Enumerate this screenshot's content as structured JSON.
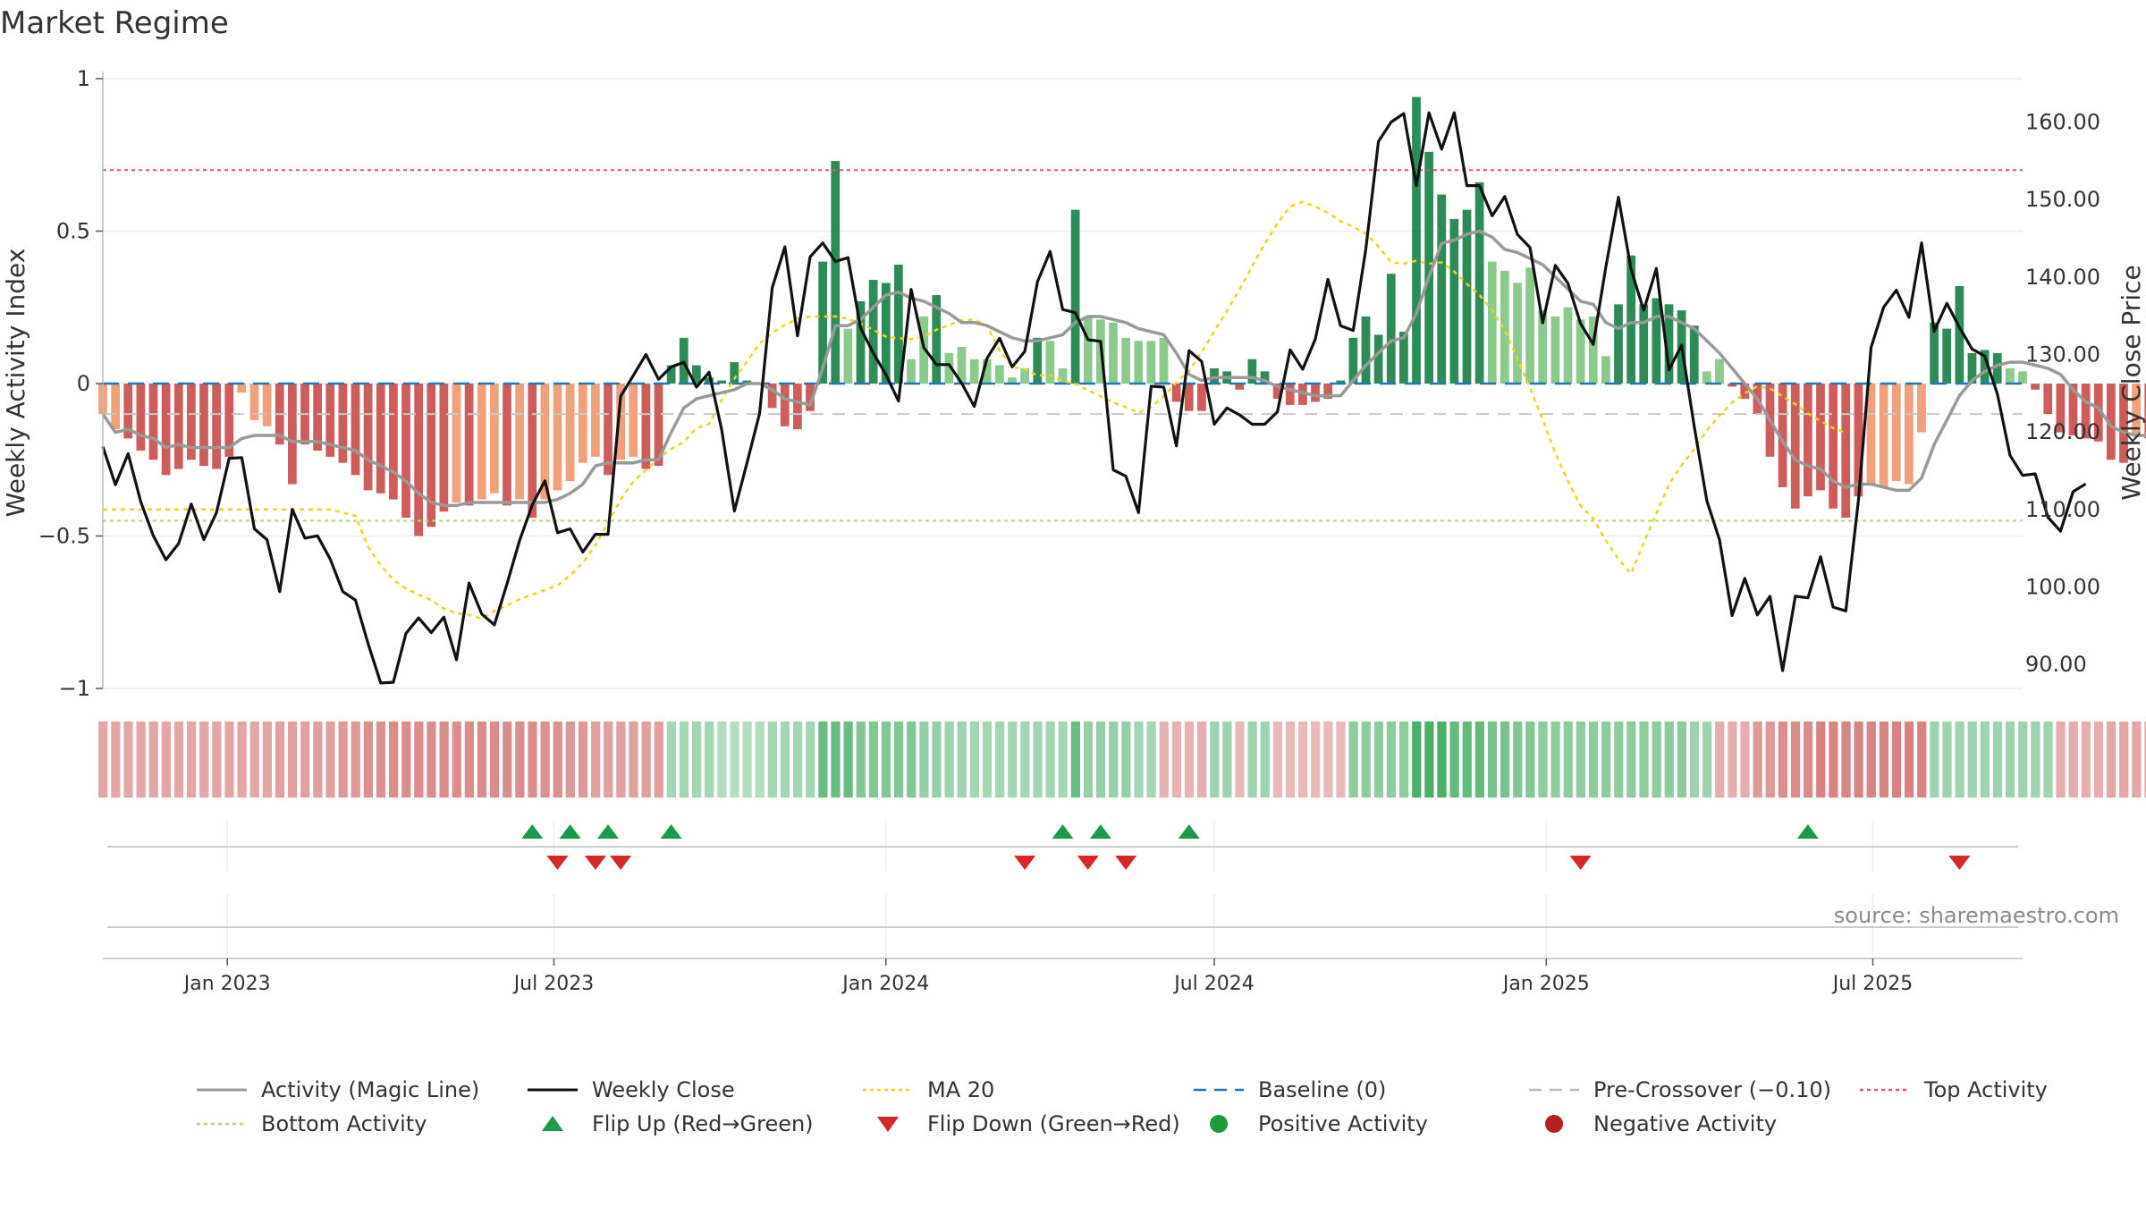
{
  "chart_data": {
    "title": "Market Regime",
    "source": "source: sharemaestro.com",
    "type": "bar",
    "axes": {
      "y_left": {
        "label": "Weekly Activity Index",
        "ticks": [
          1,
          0.5,
          0,
          -0.5,
          -1
        ],
        "tick_labels": [
          "1",
          "0.5",
          "0",
          "−0.5",
          "−1"
        ],
        "range": [
          -1,
          1
        ]
      },
      "y_right": {
        "label": "Weekly Close Price",
        "ticks": [
          160,
          150,
          140,
          130,
          120,
          110,
          100,
          90
        ],
        "tick_labels": [
          "160.00",
          "150.00",
          "140.00",
          "130.00",
          "120.00",
          "110.00",
          "100.00",
          "90.00"
        ],
        "range": [
          86.9,
          165.6
        ]
      },
      "x": {
        "range": [
          "2022-10-24",
          "2025-09-22"
        ],
        "ticks": [
          "2023-01-01",
          "2023-07-01",
          "2024-01-01",
          "2024-07-01",
          "2025-01-01",
          "2025-07-01"
        ],
        "tick_labels": [
          "Jan 2023",
          "Jul 2023",
          "Jan 2024",
          "Jul 2024",
          "Jan 2025",
          "Jul 2025"
        ]
      }
    },
    "reference_lines": {
      "baseline": 0,
      "pre_crossover": -0.1,
      "top_activity": 0.7,
      "bottom_activity": -0.45
    },
    "start_date": "2022-10-24",
    "activity": [
      -0.1,
      -0.15,
      -0.18,
      -0.22,
      -0.25,
      -0.3,
      -0.28,
      -0.25,
      -0.27,
      -0.28,
      -0.24,
      -0.03,
      -0.12,
      -0.14,
      -0.2,
      -0.33,
      -0.2,
      -0.22,
      -0.24,
      -0.26,
      -0.3,
      -0.35,
      -0.36,
      -0.38,
      -0.44,
      -0.5,
      -0.47,
      -0.42,
      -0.39,
      -0.4,
      -0.38,
      -0.36,
      -0.4,
      -0.38,
      -0.44,
      -0.38,
      -0.35,
      -0.32,
      -0.26,
      -0.24,
      -0.3,
      -0.25,
      -0.24,
      -0.28,
      -0.27,
      0.06,
      0.15,
      0.06,
      0.02,
      0.01,
      0.07,
      0.01,
      0.0,
      -0.08,
      -0.14,
      -0.15,
      -0.09,
      0.4,
      0.73,
      0.18,
      0.27,
      0.34,
      0.33,
      0.39,
      0.08,
      0.22,
      0.29,
      0.1,
      0.12,
      0.08,
      0.08,
      0.06,
      0.02,
      0.05,
      0.15,
      0.14,
      0.05,
      0.57,
      0.22,
      0.21,
      0.2,
      0.15,
      0.14,
      0.14,
      0.15,
      -0.06,
      -0.09,
      -0.09,
      0.05,
      0.04,
      -0.02,
      0.08,
      0.04,
      -0.05,
      -0.07,
      -0.07,
      -0.06,
      -0.05,
      0.01,
      0.15,
      0.22,
      0.16,
      0.36,
      0.17,
      0.94,
      0.76,
      0.62,
      0.54,
      0.57,
      0.66,
      0.4,
      0.37,
      0.33,
      0.38,
      0.24,
      0.22,
      0.25,
      0.21,
      0.22,
      0.09,
      0.26,
      0.42,
      0.26,
      0.28,
      0.26,
      0.24,
      0.19,
      0.04,
      0.08,
      -0.01,
      -0.05,
      -0.1,
      -0.24,
      -0.34,
      -0.41,
      -0.37,
      -0.35,
      -0.41,
      -0.44,
      -0.37,
      -0.33,
      -0.34,
      -0.32,
      -0.33,
      -0.16,
      0.2,
      0.18,
      0.32,
      0.1,
      0.11,
      0.1,
      0.05,
      0.04,
      -0.02,
      -0.1,
      -0.16,
      -0.17,
      -0.18,
      -0.19,
      -0.25,
      -0.26,
      -0.17,
      -0.18
    ],
    "magic_line": [
      -0.1,
      -0.16,
      -0.15,
      -0.17,
      -0.18,
      -0.21,
      -0.2,
      -0.21,
      -0.21,
      -0.21,
      -0.21,
      -0.18,
      -0.17,
      -0.17,
      -0.17,
      -0.19,
      -0.19,
      -0.19,
      -0.2,
      -0.21,
      -0.22,
      -0.25,
      -0.27,
      -0.29,
      -0.32,
      -0.36,
      -0.39,
      -0.4,
      -0.4,
      -0.39,
      -0.39,
      -0.39,
      -0.39,
      -0.39,
      -0.39,
      -0.39,
      -0.38,
      -0.36,
      -0.33,
      -0.27,
      -0.26,
      -0.26,
      -0.26,
      -0.25,
      -0.25,
      -0.16,
      -0.08,
      -0.05,
      -0.04,
      -0.03,
      -0.02,
      0.0,
      0.0,
      -0.02,
      -0.05,
      -0.06,
      -0.07,
      0.05,
      0.19,
      0.19,
      0.21,
      0.25,
      0.29,
      0.3,
      0.28,
      0.27,
      0.25,
      0.23,
      0.2,
      0.2,
      0.19,
      0.17,
      0.15,
      0.14,
      0.14,
      0.15,
      0.16,
      0.2,
      0.22,
      0.22,
      0.21,
      0.2,
      0.18,
      0.17,
      0.16,
      0.1,
      0.03,
      0.01,
      0.02,
      0.02,
      0.02,
      0.02,
      0.01,
      -0.01,
      -0.02,
      -0.03,
      -0.04,
      -0.04,
      -0.04,
      0.01,
      0.06,
      0.1,
      0.14,
      0.15,
      0.23,
      0.35,
      0.46,
      0.47,
      0.49,
      0.5,
      0.48,
      0.44,
      0.43,
      0.41,
      0.39,
      0.35,
      0.31,
      0.27,
      0.26,
      0.2,
      0.18,
      0.2,
      0.2,
      0.22,
      0.22,
      0.2,
      0.18,
      0.14,
      0.1,
      0.05,
      0.0,
      -0.05,
      -0.12,
      -0.19,
      -0.25,
      -0.27,
      -0.28,
      -0.32,
      -0.34,
      -0.33,
      -0.33,
      -0.34,
      -0.35,
      -0.35,
      -0.31,
      -0.2,
      -0.12,
      -0.04,
      0.01,
      0.04,
      0.06,
      0.07,
      0.07,
      0.06,
      0.05,
      0.03,
      -0.02,
      -0.06,
      -0.08,
      -0.14,
      -0.16,
      -0.17,
      -0.17
    ],
    "weekly_close": [
      118.1,
      113.2,
      117.2,
      111.0,
      106.6,
      103.5,
      105.6,
      110.7,
      106.1,
      109.6,
      116.6,
      116.7,
      107.5,
      106.1,
      99.4,
      110.0,
      106.3,
      106.6,
      103.6,
      99.4,
      98.3,
      92.7,
      87.6,
      87.7,
      94.0,
      96.0,
      94.1,
      96.1,
      90.6,
      100.5,
      96.5,
      95.1,
      100.4,
      106.0,
      110.6,
      113.7,
      107.0,
      107.5,
      104.5,
      106.8,
      106.8,
      124.6,
      127.3,
      130.0,
      126.8,
      128.4,
      129.0,
      125.8,
      127.7,
      120.3,
      109.8,
      116.0,
      122.4,
      138.6,
      143.9,
      132.4,
      142.6,
      144.4,
      142.0,
      142.5,
      133.4,
      130.2,
      127.4,
      124.0,
      138.4,
      130.9,
      128.7,
      128.7,
      126.3,
      123.3,
      129.5,
      132.1,
      128.4,
      130.4,
      139.4,
      143.3,
      135.8,
      135.4,
      131.9,
      131.7,
      115.1,
      114.3,
      109.6,
      125.9,
      125.8,
      118.2,
      130.5,
      129.1,
      121.0,
      123.1,
      122.2,
      121.0,
      121.0,
      122.6,
      130.6,
      128.1,
      132.0,
      139.7,
      133.7,
      133.1,
      143.6,
      157.5,
      160.0,
      161.1,
      151.8,
      161.2,
      156.5,
      161.2,
      151.8,
      151.8,
      147.9,
      150.4,
      145.5,
      143.8,
      134.1,
      141.5,
      139.2,
      134.0,
      131.3,
      141.3,
      150.3,
      141.0,
      135.7,
      141.1,
      128.0,
      131.2,
      120.7,
      111.1,
      106.1,
      96.3,
      101.1,
      96.4,
      98.8,
      89.2,
      98.8,
      98.6,
      103.9,
      97.4,
      96.9,
      111.2,
      130.9,
      136.1,
      138.3,
      134.8,
      144.4,
      133.0,
      136.6,
      133.5,
      130.7,
      129.8,
      124.9,
      117.0,
      114.4,
      114.6,
      109.0,
      107.2,
      112.3,
      113.3
    ],
    "ma20": [
      110.0,
      110.0,
      110.0,
      110.0,
      110.0,
      110.0,
      110.0,
      110.0,
      110.0,
      110.0,
      110.0,
      110.0,
      110.0,
      110.0,
      110.0,
      110.0,
      110.0,
      110.0,
      110.0,
      109.6,
      109.2,
      105.2,
      102.8,
      100.9,
      99.8,
      99.0,
      98.3,
      97.2,
      96.6,
      96.4,
      95.9,
      96.9,
      97.6,
      98.4,
      99.0,
      99.6,
      100.2,
      101.5,
      103.1,
      105.4,
      108.3,
      111.3,
      113.6,
      115.1,
      116.6,
      117.8,
      118.7,
      120.5,
      121.0,
      124.1,
      126.9,
      129.1,
      131.4,
      132.8,
      133.8,
      134.6,
      134.9,
      134.9,
      134.9,
      134.6,
      134.0,
      133.2,
      132.3,
      132.1,
      132.0,
      132.3,
      133.2,
      133.8,
      134.4,
      134.5,
      133.7,
      130.5,
      128.4,
      128.1,
      127.3,
      127.3,
      126.6,
      126.2,
      125.4,
      124.6,
      123.8,
      123.2,
      122.5,
      123.2,
      124.6,
      126.4,
      127.9,
      130.3,
      133.0,
      135.6,
      138.4,
      141.4,
      144.3,
      146.9,
      149.1,
      149.7,
      149.1,
      148.3,
      147.2,
      146.5,
      145.6,
      144.0,
      141.9,
      141.7,
      142.1,
      141.7,
      141.9,
      140.7,
      139.1,
      137.7,
      135.7,
      133.1,
      129.5,
      125.7,
      121.6,
      117.3,
      113.7,
      110.5,
      108.8,
      106.0,
      103.6,
      101.7,
      105.7,
      109.5,
      113.2,
      115.7,
      117.8,
      120.2,
      122.1,
      123.8,
      125.0,
      125.9,
      125.6,
      124.6,
      123.6,
      122.4,
      121.4,
      120.5,
      119.9
    ],
    "close_marker_dates": [
      "2023-06-19",
      "2024-09-22"
    ],
    "bar_regime_note": "bars colored by regime; light shading for weaker values",
    "regime_strip": [
      -0.35,
      -0.35,
      -0.35,
      -0.35,
      -0.35,
      -0.35,
      -0.35,
      -0.35,
      -0.35,
      -0.35,
      -0.35,
      -0.35,
      -0.35,
      -0.35,
      -0.4,
      -0.4,
      -0.4,
      -0.4,
      -0.4,
      -0.45,
      -0.45,
      -0.5,
      -0.5,
      -0.55,
      -0.55,
      -0.55,
      -0.55,
      -0.55,
      -0.55,
      -0.55,
      -0.55,
      -0.55,
      -0.55,
      -0.55,
      -0.55,
      -0.5,
      -0.5,
      -0.45,
      -0.45,
      -0.4,
      -0.4,
      -0.4,
      -0.4,
      -0.4,
      -0.4,
      0.3,
      0.3,
      0.3,
      0.3,
      0.2,
      0.2,
      0.2,
      0.2,
      0.3,
      0.3,
      0.3,
      0.3,
      0.7,
      0.7,
      0.7,
      0.55,
      0.55,
      0.55,
      0.55,
      0.55,
      0.4,
      0.4,
      0.35,
      0.35,
      0.3,
      0.3,
      0.3,
      0.3,
      0.3,
      0.3,
      0.3,
      0.3,
      0.7,
      0.4,
      0.4,
      0.4,
      0.4,
      0.3,
      0.3,
      -0.25,
      -0.25,
      -0.25,
      -0.3,
      0.35,
      0.35,
      -0.2,
      0.35,
      0.35,
      -0.2,
      -0.2,
      -0.2,
      -0.2,
      -0.2,
      -0.2,
      0.45,
      0.45,
      0.45,
      0.45,
      0.45,
      0.9,
      0.9,
      0.9,
      0.75,
      0.75,
      0.75,
      0.6,
      0.6,
      0.55,
      0.55,
      0.45,
      0.45,
      0.45,
      0.45,
      0.45,
      0.45,
      0.45,
      0.45,
      0.45,
      0.45,
      0.45,
      0.45,
      0.35,
      0.35,
      -0.3,
      -0.3,
      -0.3,
      -0.45,
      -0.45,
      -0.55,
      -0.55,
      -0.55,
      -0.6,
      -0.6,
      -0.6,
      -0.6,
      -0.6,
      -0.6,
      -0.6,
      -0.6,
      -0.6,
      0.35,
      0.35,
      0.35,
      0.35,
      0.35,
      0.35,
      0.35,
      0.35,
      0.35,
      0.35,
      -0.3,
      -0.3,
      -0.3,
      -0.3,
      -0.35,
      -0.35,
      -0.35,
      -0.35
    ],
    "flip_up_dates": [
      "2023-06-19",
      "2023-07-10",
      "2023-07-31",
      "2023-09-04",
      "2024-04-08",
      "2024-04-29",
      "2024-06-17",
      "2025-05-26"
    ],
    "flip_down_dates": [
      "2023-07-03",
      "2023-07-24",
      "2023-08-07",
      "2024-03-18",
      "2024-04-22",
      "2024-05-13",
      "2025-01-20",
      "2025-08-18"
    ],
    "legend": [
      {
        "key": "magic",
        "label": "Activity (Magic Line)",
        "color": "#999999",
        "style": "solid"
      },
      {
        "key": "close",
        "label": "Weekly Close",
        "color": "#111111",
        "style": "solid"
      },
      {
        "key": "ma20",
        "label": "MA 20",
        "color": "#f2d21a",
        "style": "dotted"
      },
      {
        "key": "baseline",
        "label": "Baseline (0)",
        "color": "#1f77b4",
        "style": "dashed"
      },
      {
        "key": "precross",
        "label": "Pre-Crossover (−0.10)",
        "color": "#bbbbbb",
        "style": "dashed"
      },
      {
        "key": "top",
        "label": "Top Activity",
        "color": "#e05572",
        "style": "dotted"
      },
      {
        "key": "bottom",
        "label": "Bottom Activity",
        "color": "#a9dc6f",
        "style": "dotted"
      },
      {
        "key": "flipup",
        "label": "Flip Up (Red→Green)",
        "color": "#1a9a4a",
        "style": "triangle-up"
      },
      {
        "key": "flipdown",
        "label": "Flip Down (Green→Red)",
        "color": "#d62728",
        "style": "triangle-down"
      },
      {
        "key": "pos",
        "label": "Positive Activity",
        "color": "#1e9a3c",
        "style": "circle"
      },
      {
        "key": "neg",
        "label": "Negative Activity",
        "color": "#b22222",
        "style": "circle"
      }
    ],
    "colors": {
      "pos_strong": "#2e8b57",
      "pos_light": "#8cc98c",
      "neg_strong": "#cd5c5c",
      "neg_light": "#f0a07a",
      "grid": "#eeeeee",
      "axis_text": "#333333"
    }
  }
}
